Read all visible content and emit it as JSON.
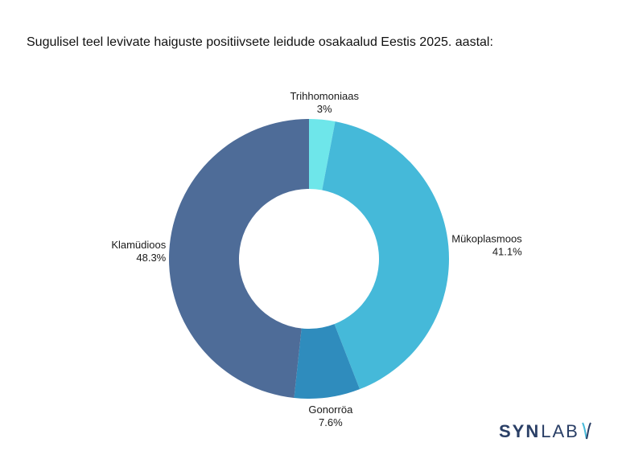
{
  "chart_data": {
    "type": "pie",
    "donut": true,
    "title": "Sugulisel teel levivate haiguste positiivsete leidude osakaalud Eestis 2025. aastal:",
    "slices": [
      {
        "label": "Trihhomoniaas",
        "value": 3,
        "display": "3%",
        "color": "#6ee6ea"
      },
      {
        "label": "Mükoplasmoos",
        "value": 41.1,
        "display": "41.1%",
        "color": "#45b9d9"
      },
      {
        "label": "Gonorröa",
        "value": 7.6,
        "display": "7.6%",
        "color": "#2f8cbd"
      },
      {
        "label": "Klamüdioos",
        "value": 48.3,
        "display": "48.3%",
        "color": "#4e6c98"
      }
    ],
    "legend": "none"
  },
  "brand": {
    "syn": "SYN",
    "lab": "LAB",
    "color": "#2a3f66",
    "accent": "#45b9d9"
  }
}
